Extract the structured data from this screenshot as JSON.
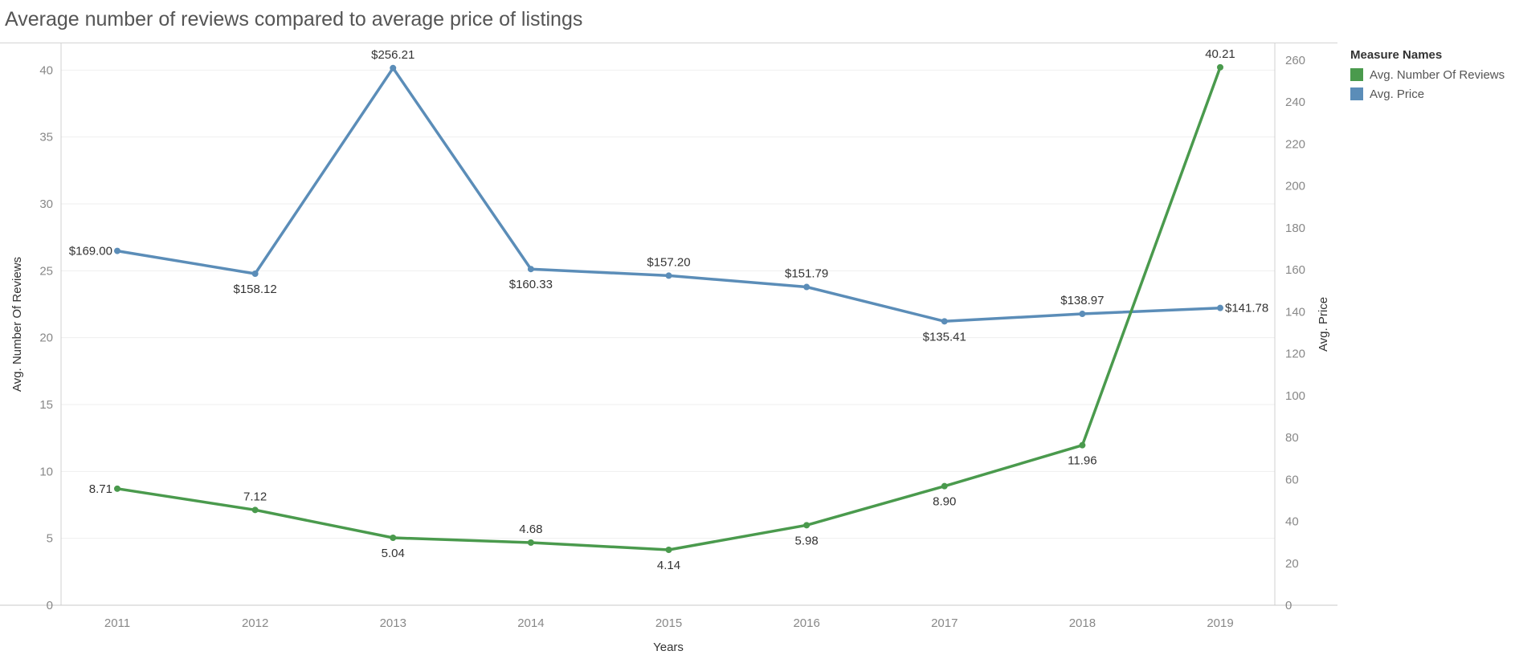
{
  "colors": {
    "reviews": "#4a9a4d",
    "price": "#5b8db8",
    "grid": "#efefef",
    "axis_text": "#888888",
    "label_text": "#333333"
  },
  "chart_data": {
    "type": "line",
    "title": "Average number of reviews compared to average price of listings",
    "xlabel": "Years",
    "ylabel_left": "Avg. Number Of Reviews",
    "ylabel_right": "Avg. Price",
    "categories": [
      "2011",
      "2012",
      "2013",
      "2014",
      "2015",
      "2016",
      "2017",
      "2018",
      "2019"
    ],
    "y_left_ticks": [
      0,
      5,
      10,
      15,
      20,
      25,
      30,
      35,
      40
    ],
    "y_left_range": [
      0,
      42
    ],
    "y_right_ticks": [
      0,
      20,
      40,
      60,
      80,
      100,
      120,
      140,
      160,
      180,
      200,
      220,
      240,
      260
    ],
    "y_right_range": [
      0,
      268
    ],
    "grid": true,
    "legend_position": "right",
    "series": [
      {
        "name": "Avg. Number Of Reviews",
        "axis": "left",
        "color": "#4a9a4d",
        "values": [
          8.71,
          7.12,
          5.04,
          4.68,
          4.14,
          5.98,
          8.9,
          11.96,
          40.21
        ],
        "labels": [
          "8.71",
          "7.12",
          "5.04",
          "4.68",
          "4.14",
          "5.98",
          "8.90",
          "11.96",
          "40.21"
        ]
      },
      {
        "name": "Avg. Price",
        "axis": "right",
        "color": "#5b8db8",
        "values": [
          169.0,
          158.12,
          256.21,
          160.33,
          157.2,
          151.79,
          135.41,
          138.97,
          141.78
        ],
        "labels": [
          "$169.00",
          "$158.12",
          "$256.21",
          "$160.33",
          "$157.20",
          "$151.79",
          "$135.41",
          "$138.97",
          "$141.78"
        ]
      }
    ]
  },
  "legend": {
    "title": "Measure Names",
    "items": [
      {
        "label": "Avg. Number Of Reviews",
        "color": "#4a9a4d"
      },
      {
        "label": "Avg. Price",
        "color": "#5b8db8"
      }
    ]
  }
}
